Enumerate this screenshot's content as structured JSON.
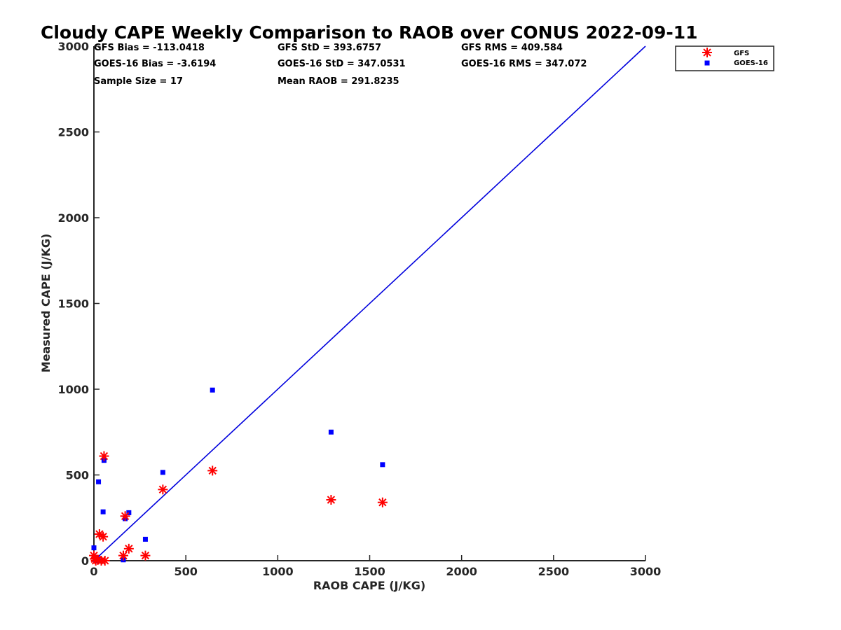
{
  "chart_data": {
    "type": "scatter",
    "title": "Cloudy CAPE Weekly Comparison to RAOB over CONUS 2022-09-11",
    "xlabel": "RAOB CAPE (J/KG)",
    "ylabel": "Measured CAPE (J/KG)",
    "xlim": [
      0,
      3000
    ],
    "ylim": [
      0,
      3000
    ],
    "xticks": [
      0,
      500,
      1000,
      1500,
      2000,
      2500,
      3000
    ],
    "yticks": [
      0,
      500,
      1000,
      1500,
      2000,
      2500,
      3000
    ],
    "grid": false,
    "legend_position": "top-right",
    "stats": [
      "GFS Bias = -113.0418",
      "GOES-16 Bias = -3.6194",
      "Sample Size = 17",
      "GFS StD = 393.6757",
      "GOES-16 StD = 347.0531",
      "Mean RAOB = 291.8235",
      "GFS RMS = 409.584",
      "GOES-16 RMS = 347.072"
    ],
    "reference_line": {
      "name": "1:1 line",
      "color": "#0000dd",
      "x": [
        0,
        3000
      ],
      "y": [
        0,
        3000
      ]
    },
    "series": [
      {
        "name": "GFS",
        "marker": "asterisk",
        "color": "#ff0000",
        "points": [
          [
            0,
            30
          ],
          [
            5,
            10
          ],
          [
            10,
            0
          ],
          [
            20,
            5
          ],
          [
            30,
            155
          ],
          [
            40,
            0
          ],
          [
            50,
            140
          ],
          [
            55,
            610
          ],
          [
            60,
            0
          ],
          [
            160,
            30
          ],
          [
            170,
            260
          ],
          [
            190,
            70
          ],
          [
            280,
            30
          ],
          [
            375,
            415
          ],
          [
            645,
            525
          ],
          [
            1290,
            355
          ],
          [
            1570,
            340
          ]
        ]
      },
      {
        "name": "GOES-16",
        "marker": "square",
        "color": "#0000ff",
        "points": [
          [
            0,
            75
          ],
          [
            5,
            20
          ],
          [
            10,
            0
          ],
          [
            15,
            5
          ],
          [
            25,
            460
          ],
          [
            30,
            0
          ],
          [
            50,
            285
          ],
          [
            55,
            585
          ],
          [
            160,
            5
          ],
          [
            170,
            245
          ],
          [
            190,
            280
          ],
          [
            280,
            125
          ],
          [
            375,
            515
          ],
          [
            645,
            995
          ],
          [
            1290,
            750
          ],
          [
            1570,
            560
          ],
          [
            20,
            10
          ]
        ]
      }
    ]
  }
}
